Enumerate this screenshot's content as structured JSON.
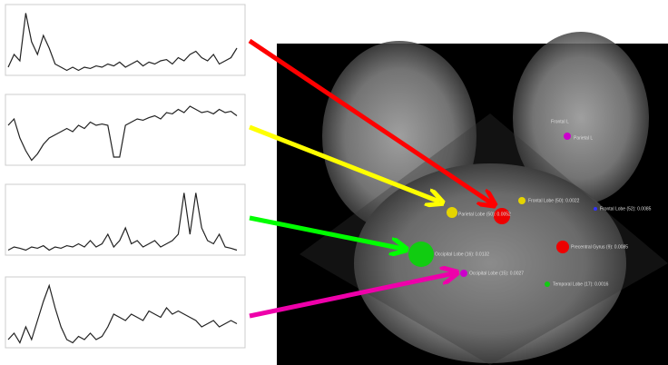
{
  "panels": [
    {
      "values": [
        0.1,
        0.3,
        0.2,
        0.95,
        0.5,
        0.3,
        0.6,
        0.4,
        0.15,
        0.1,
        0.05,
        0.1,
        0.05,
        0.1,
        0.08,
        0.12,
        0.1,
        0.15,
        0.12,
        0.18,
        0.1,
        0.15,
        0.2,
        0.12,
        0.18,
        0.15,
        0.2,
        0.22,
        0.15,
        0.25,
        0.2,
        0.3,
        0.35,
        0.25,
        0.2,
        0.3,
        0.15,
        0.2,
        0.25,
        0.4
      ]
    },
    {
      "values": [
        0.6,
        0.7,
        0.4,
        0.2,
        0.05,
        0.15,
        0.3,
        0.4,
        0.45,
        0.5,
        0.55,
        0.5,
        0.6,
        0.55,
        0.65,
        0.6,
        0.62,
        0.6,
        0.1,
        0.1,
        0.6,
        0.65,
        0.7,
        0.68,
        0.72,
        0.75,
        0.7,
        0.8,
        0.78,
        0.85,
        0.8,
        0.9,
        0.85,
        0.8,
        0.82,
        0.78,
        0.85,
        0.8,
        0.82,
        0.75
      ]
    },
    {
      "values": [
        0.05,
        0.1,
        0.08,
        0.05,
        0.1,
        0.08,
        0.12,
        0.05,
        0.1,
        0.08,
        0.12,
        0.1,
        0.15,
        0.1,
        0.2,
        0.1,
        0.15,
        0.3,
        0.1,
        0.2,
        0.4,
        0.15,
        0.2,
        0.1,
        0.15,
        0.2,
        0.1,
        0.15,
        0.2,
        0.3,
        0.95,
        0.3,
        0.95,
        0.4,
        0.2,
        0.15,
        0.3,
        0.1,
        0.08,
        0.05
      ]
    },
    {
      "values": [
        0.1,
        0.2,
        0.05,
        0.3,
        0.1,
        0.4,
        0.7,
        0.95,
        0.6,
        0.3,
        0.1,
        0.05,
        0.15,
        0.1,
        0.2,
        0.1,
        0.15,
        0.3,
        0.5,
        0.45,
        0.4,
        0.5,
        0.45,
        0.4,
        0.55,
        0.5,
        0.45,
        0.6,
        0.5,
        0.55,
        0.5,
        0.45,
        0.4,
        0.3,
        0.35,
        0.4,
        0.3,
        0.35,
        0.4,
        0.35
      ]
    }
  ],
  "brain_labels": [
    "Parietal Lobe (50): 0.0052",
    "Frontal Lobe (50): 0.0022",
    "Frontal Lobe (52): 0.0085",
    "Precentral Gyrus (9): 0.0085",
    "Occipital Lobe (16): 0.0132",
    "Occipital Lobe (15): 0.0027",
    "Temporal Lobe (17): 0.0016",
    "Frontal L",
    "Parietal L"
  ]
}
